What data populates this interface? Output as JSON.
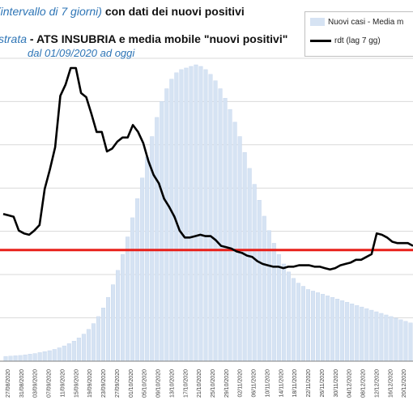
{
  "title": {
    "line1_blue": "(intervallo di 7 giorni)",
    "line1_black": "con dati dei nuovi positivi",
    "line2_blue": "strata",
    "line2_black": "- ATS INSUBRIA e media mobile \"nuovi positivi\"",
    "line3_blue": "dal 01/09/2020 ad oggi"
  },
  "legend": {
    "bars_label": "Nuovi casi - Media m",
    "line_label": "rdt (lag 7 gg)"
  },
  "colors": {
    "bars": "#d6e3f3",
    "bar_edge": "#c3d4ec",
    "line": "#000000",
    "threshold": "#e8201a",
    "grid": "#d9d9d9",
    "axis": "#7f7f7f"
  },
  "chart_data": {
    "type": "bar",
    "title": "",
    "xlabel": "",
    "ylabel": "",
    "grid": true,
    "legend_position": "top-right",
    "x_tick_labels": [
      "27/08/2020",
      "31/08/2020",
      "03/09/2020",
      "07/09/2020",
      "11/09/2020",
      "15/09/2020",
      "19/09/2020",
      "23/09/2020",
      "27/09/2020",
      "01/10/2020",
      "05/10/2020",
      "09/10/2020",
      "13/10/2020",
      "17/10/2020",
      "21/10/2020",
      "25/10/2020",
      "29/10/2020",
      "02/11/2020",
      "06/11/2020",
      "10/11/2020",
      "14/11/2020",
      "18/11/2020",
      "22/11/2020",
      "26/11/2020",
      "30/11/2020",
      "04/12/2020",
      "08/12/2020",
      "12/12/2020",
      "16/12/2020",
      "20/12/2020"
    ],
    "series": [
      {
        "name": "Nuovi casi - Media m",
        "type": "bar",
        "values": [
          1.5,
          1.6,
          1.7,
          1.8,
          2,
          2.2,
          2.4,
          2.7,
          3,
          3.3,
          3.7,
          4.2,
          4.8,
          5.5,
          6.3,
          7.3,
          8.5,
          10,
          11.8,
          14,
          16.7,
          20,
          24,
          28.5,
          33.5,
          39,
          45,
          51,
          57.5,
          64,
          70.5,
          76.5,
          81.5,
          85.5,
          88.5,
          90.5,
          91.5,
          92,
          92.5,
          93,
          92.5,
          91.5,
          90,
          88,
          85.5,
          82.5,
          79,
          75,
          70.5,
          65.5,
          60.5,
          55.5,
          50.5,
          45.5,
          41,
          37,
          33.5,
          30.5,
          28,
          26,
          24.5,
          23.5,
          22.5,
          22,
          21.5,
          21,
          20.5,
          20,
          19.5,
          19,
          18.5,
          18,
          17.5,
          17,
          16.5,
          16,
          15.5,
          15,
          14.5,
          14,
          13.5,
          13,
          12.5,
          12
        ]
      },
      {
        "name": "rdt (lag 7 gg)",
        "type": "line",
        "values": [
          1.26,
          1.25,
          1.24,
          1.14,
          1.12,
          1.11,
          1.14,
          1.18,
          1.44,
          1.58,
          1.74,
          2.11,
          2.19,
          2.31,
          2.31,
          2.13,
          2.1,
          1.98,
          1.85,
          1.85,
          1.71,
          1.73,
          1.78,
          1.81,
          1.81,
          1.9,
          1.85,
          1.77,
          1.64,
          1.54,
          1.48,
          1.37,
          1.31,
          1.24,
          1.14,
          1.09,
          1.09,
          1.1,
          1.11,
          1.1,
          1.1,
          1.07,
          1.03,
          1.02,
          1.01,
          0.99,
          0.98,
          0.96,
          0.95,
          0.92,
          0.9,
          0.89,
          0.88,
          0.88,
          0.87,
          0.88,
          0.88,
          0.89,
          0.89,
          0.89,
          0.88,
          0.88,
          0.87,
          0.86,
          0.87,
          0.89,
          0.9,
          0.91,
          0.93,
          0.93,
          0.95,
          0.97,
          1.12,
          1.11,
          1.09,
          1.06,
          1.05,
          1.05,
          1.05,
          1.03
        ]
      },
      {
        "name": "",
        "type": "hline",
        "value": 1
      }
    ],
    "ylim": [
      0.2,
      2.45
    ]
  }
}
